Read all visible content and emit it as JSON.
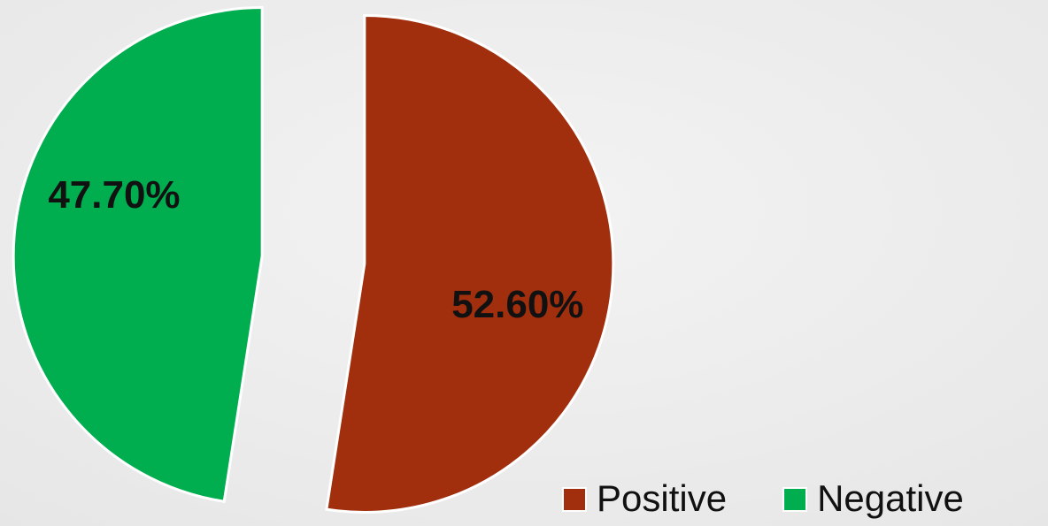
{
  "chart_data": {
    "type": "pie",
    "categories": [
      "Positive",
      "Negative"
    ],
    "values": [
      52.6,
      47.7
    ],
    "value_labels": [
      "52.60%",
      "47.70%"
    ],
    "colors": [
      "#a12f0e",
      "#00ad4f"
    ],
    "legend": "bottom-right"
  }
}
